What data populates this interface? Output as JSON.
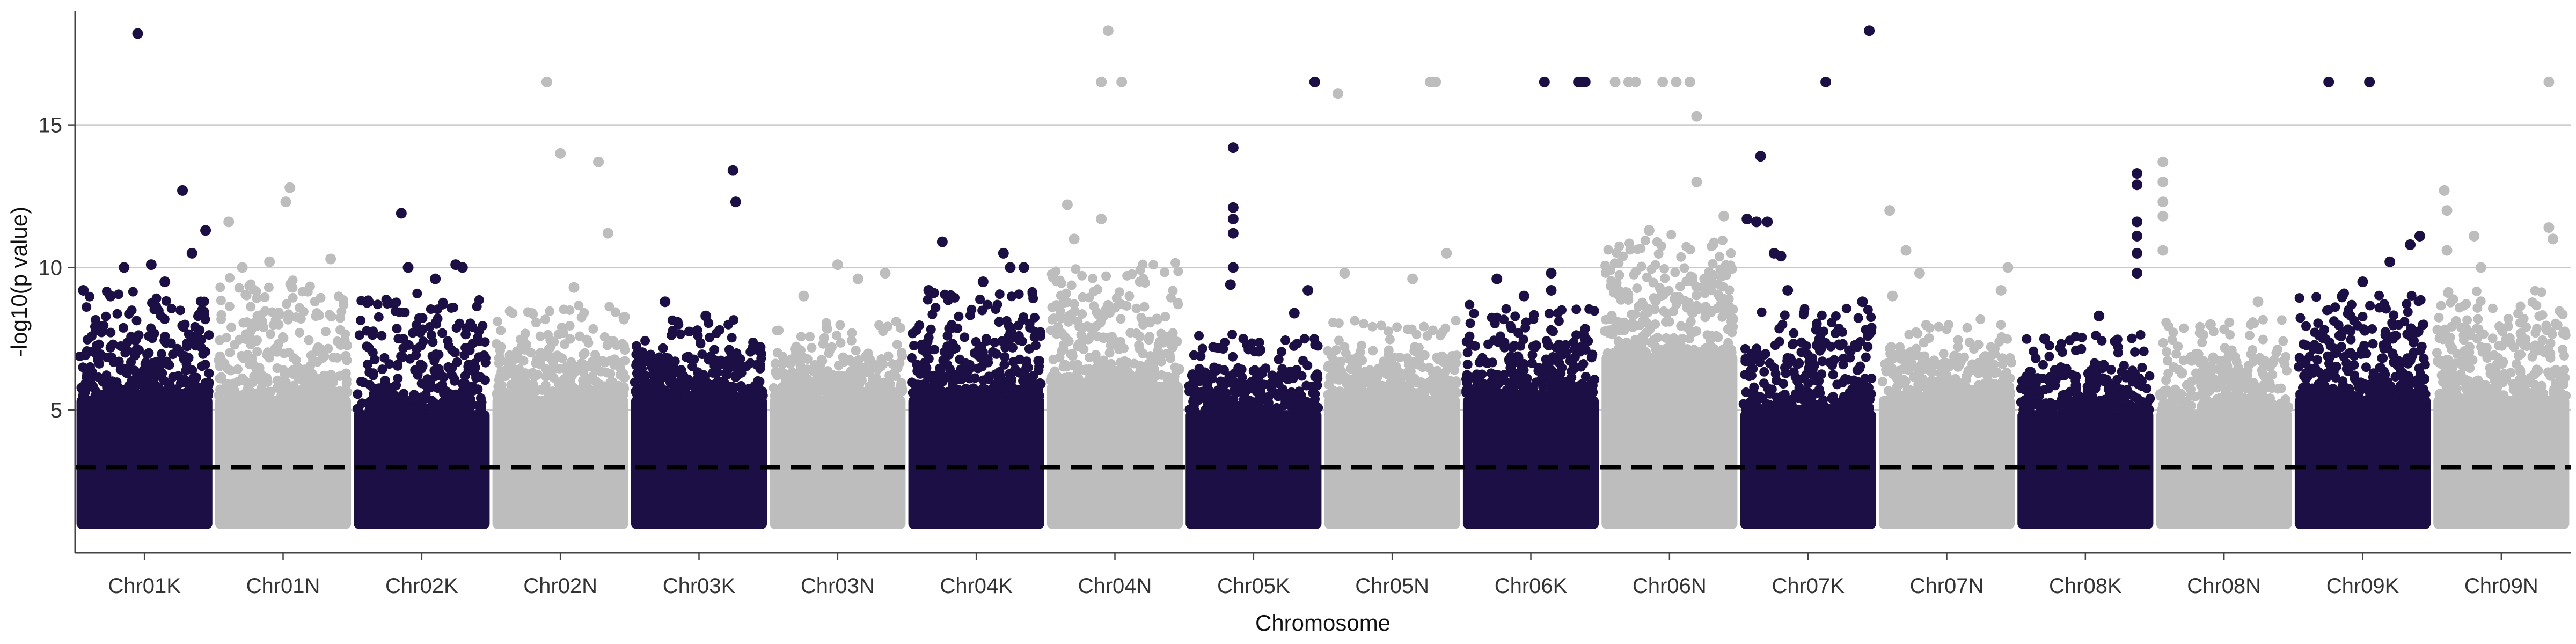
{
  "chart_data": {
    "type": "scatter",
    "title": "",
    "xlabel": "Chromosome",
    "ylabel": "-log10(p value)",
    "ylim": [
      0,
      19
    ],
    "yticks": [
      5,
      10,
      15
    ],
    "grid": "horizontal-major",
    "legend": "none",
    "threshold": {
      "y": 3,
      "style": "dashed",
      "color": "#000000"
    },
    "colors": {
      "dark": "#1c0f45",
      "light": "#bdbdbd"
    },
    "categories": [
      "Chr01K",
      "Chr01N",
      "Chr02K",
      "Chr02N",
      "Chr03K",
      "Chr03N",
      "Chr04K",
      "Chr04N",
      "Chr05K",
      "Chr05N",
      "Chr06K",
      "Chr06N",
      "Chr07K",
      "Chr07N",
      "Chr08K",
      "Chr08N",
      "Chr09K",
      "Chr09N"
    ],
    "series": [
      {
        "chrom": "Chr01K",
        "color": "dark",
        "band_top": 5.5,
        "cloud_top": 8.0,
        "highlights": [
          [
            0.45,
            18.2
          ],
          [
            0.78,
            12.7
          ],
          [
            0.55,
            10.1
          ],
          [
            0.35,
            10.0
          ],
          [
            0.85,
            10.5
          ],
          [
            0.95,
            11.3
          ],
          [
            0.05,
            9.2
          ],
          [
            0.65,
            9.5
          ],
          [
            0.25,
            9.0
          ]
        ]
      },
      {
        "chrom": "Chr01N",
        "color": "light",
        "band_top": 5.5,
        "cloud_top": 8.5,
        "highlights": [
          [
            0.1,
            11.6
          ],
          [
            0.55,
            12.8
          ],
          [
            0.52,
            12.3
          ],
          [
            0.4,
            10.2
          ],
          [
            0.85,
            10.3
          ],
          [
            0.2,
            10.0
          ]
        ]
      },
      {
        "chrom": "Chr02K",
        "color": "dark",
        "band_top": 5.0,
        "cloud_top": 8.0,
        "highlights": [
          [
            0.35,
            11.9
          ],
          [
            0.4,
            10.0
          ],
          [
            0.75,
            10.1
          ],
          [
            0.8,
            10.0
          ],
          [
            0.6,
            9.6
          ]
        ]
      },
      {
        "chrom": "Chr02N",
        "color": "light",
        "band_top": 5.5,
        "cloud_top": 7.5,
        "highlights": [
          [
            0.4,
            16.5
          ],
          [
            0.5,
            14.0
          ],
          [
            0.78,
            13.7
          ],
          [
            0.85,
            11.2
          ],
          [
            0.6,
            9.3
          ]
        ]
      },
      {
        "chrom": "Chr03K",
        "color": "dark",
        "band_top": 5.5,
        "cloud_top": 7.0,
        "highlights": [
          [
            0.75,
            13.4
          ],
          [
            0.77,
            12.3
          ],
          [
            0.25,
            8.8
          ],
          [
            0.55,
            8.3
          ],
          [
            0.95,
            7.2
          ]
        ]
      },
      {
        "chrom": "Chr03N",
        "color": "light",
        "band_top": 5.5,
        "cloud_top": 7.0,
        "highlights": [
          [
            0.5,
            10.1
          ],
          [
            0.25,
            9.0
          ],
          [
            0.65,
            9.6
          ],
          [
            0.85,
            9.8
          ]
        ]
      },
      {
        "chrom": "Chr04K",
        "color": "dark",
        "band_top": 5.5,
        "cloud_top": 8.0,
        "highlights": [
          [
            0.25,
            10.9
          ],
          [
            0.7,
            10.5
          ],
          [
            0.75,
            10.0
          ],
          [
            0.85,
            10.0
          ],
          [
            0.55,
            9.5
          ],
          [
            0.15,
            9.2
          ]
        ]
      },
      {
        "chrom": "Chr04N",
        "color": "light",
        "band_top": 6.0,
        "cloud_top": 9.0,
        "highlights": [
          [
            0.45,
            18.3
          ],
          [
            0.4,
            16.5
          ],
          [
            0.55,
            16.5
          ],
          [
            0.15,
            12.2
          ],
          [
            0.4,
            11.7
          ],
          [
            0.2,
            11.0
          ]
        ]
      },
      {
        "chrom": "Chr05K",
        "color": "dark",
        "band_top": 5.0,
        "cloud_top": 6.5,
        "highlights": [
          [
            0.95,
            16.5
          ],
          [
            0.35,
            14.2
          ],
          [
            0.35,
            12.1
          ],
          [
            0.35,
            11.7
          ],
          [
            0.35,
            11.2
          ],
          [
            0.9,
            9.2
          ],
          [
            0.35,
            10.0
          ],
          [
            0.33,
            9.4
          ],
          [
            0.8,
            8.4
          ]
        ]
      },
      {
        "chrom": "Chr05N",
        "color": "light",
        "band_top": 5.5,
        "cloud_top": 7.0,
        "highlights": [
          [
            0.1,
            16.1
          ],
          [
            0.78,
            16.5
          ],
          [
            0.82,
            16.5
          ],
          [
            0.8,
            16.5
          ],
          [
            0.9,
            10.5
          ],
          [
            0.15,
            9.8
          ],
          [
            0.65,
            9.6
          ]
        ]
      },
      {
        "chrom": "Chr06K",
        "color": "dark",
        "band_top": 5.5,
        "cloud_top": 7.5,
        "highlights": [
          [
            0.6,
            16.5
          ],
          [
            0.85,
            16.5
          ],
          [
            0.88,
            16.5
          ],
          [
            0.9,
            16.5
          ],
          [
            0.25,
            9.6
          ],
          [
            0.65,
            9.8
          ],
          [
            0.65,
            9.2
          ],
          [
            0.45,
            9.0
          ],
          [
            0.9,
            7.5
          ]
        ]
      },
      {
        "chrom": "Chr06N",
        "color": "light",
        "band_top": 7.0,
        "cloud_top": 10.0,
        "highlights": [
          [
            0.1,
            16.5
          ],
          [
            0.2,
            16.5
          ],
          [
            0.25,
            16.5
          ],
          [
            0.45,
            16.5
          ],
          [
            0.55,
            16.5
          ],
          [
            0.65,
            16.5
          ],
          [
            0.7,
            15.3
          ],
          [
            0.7,
            13.0
          ],
          [
            0.35,
            11.3
          ],
          [
            0.9,
            11.8
          ]
        ]
      },
      {
        "chrom": "Chr07K",
        "color": "dark",
        "band_top": 5.0,
        "cloud_top": 7.5,
        "highlights": [
          [
            0.95,
            18.3
          ],
          [
            0.63,
            16.5
          ],
          [
            0.15,
            13.9
          ],
          [
            0.05,
            11.7
          ],
          [
            0.12,
            11.6
          ],
          [
            0.2,
            11.6
          ],
          [
            0.25,
            10.5
          ],
          [
            0.3,
            10.4
          ],
          [
            0.35,
            9.2
          ],
          [
            0.9,
            8.8
          ]
        ]
      },
      {
        "chrom": "Chr07N",
        "color": "light",
        "band_top": 5.5,
        "cloud_top": 7.0,
        "highlights": [
          [
            0.08,
            12.0
          ],
          [
            0.2,
            10.6
          ],
          [
            0.3,
            9.8
          ],
          [
            0.95,
            10.0
          ],
          [
            0.1,
            9.0
          ],
          [
            0.9,
            9.2
          ]
        ]
      },
      {
        "chrom": "Chr08K",
        "color": "dark",
        "band_top": 5.0,
        "cloud_top": 6.5,
        "highlights": [
          [
            0.88,
            13.3
          ],
          [
            0.88,
            12.9
          ],
          [
            0.88,
            11.6
          ],
          [
            0.88,
            11.1
          ],
          [
            0.88,
            10.5
          ],
          [
            0.88,
            9.8
          ],
          [
            0.6,
            8.3
          ],
          [
            0.2,
            7.5
          ]
        ]
      },
      {
        "chrom": "Chr08N",
        "color": "light",
        "band_top": 5.0,
        "cloud_top": 7.0,
        "highlights": [
          [
            0.05,
            13.7
          ],
          [
            0.05,
            13.0
          ],
          [
            0.05,
            12.3
          ],
          [
            0.05,
            11.8
          ],
          [
            0.05,
            10.6
          ],
          [
            0.4,
            8.0
          ],
          [
            0.75,
            8.8
          ]
        ]
      },
      {
        "chrom": "Chr09K",
        "color": "dark",
        "band_top": 5.5,
        "cloud_top": 8.0,
        "highlights": [
          [
            0.25,
            16.5
          ],
          [
            0.55,
            16.5
          ],
          [
            0.7,
            10.2
          ],
          [
            0.85,
            10.8
          ],
          [
            0.92,
            11.1
          ],
          [
            0.5,
            9.5
          ],
          [
            0.35,
            9.0
          ]
        ]
      },
      {
        "chrom": "Chr09N",
        "color": "light",
        "band_top": 5.5,
        "cloud_top": 8.0,
        "highlights": [
          [
            0.85,
            16.5
          ],
          [
            0.08,
            12.7
          ],
          [
            0.1,
            12.0
          ],
          [
            0.3,
            11.1
          ],
          [
            0.85,
            11.4
          ],
          [
            0.88,
            11.0
          ],
          [
            0.35,
            10.0
          ],
          [
            0.1,
            10.6
          ]
        ]
      }
    ]
  }
}
